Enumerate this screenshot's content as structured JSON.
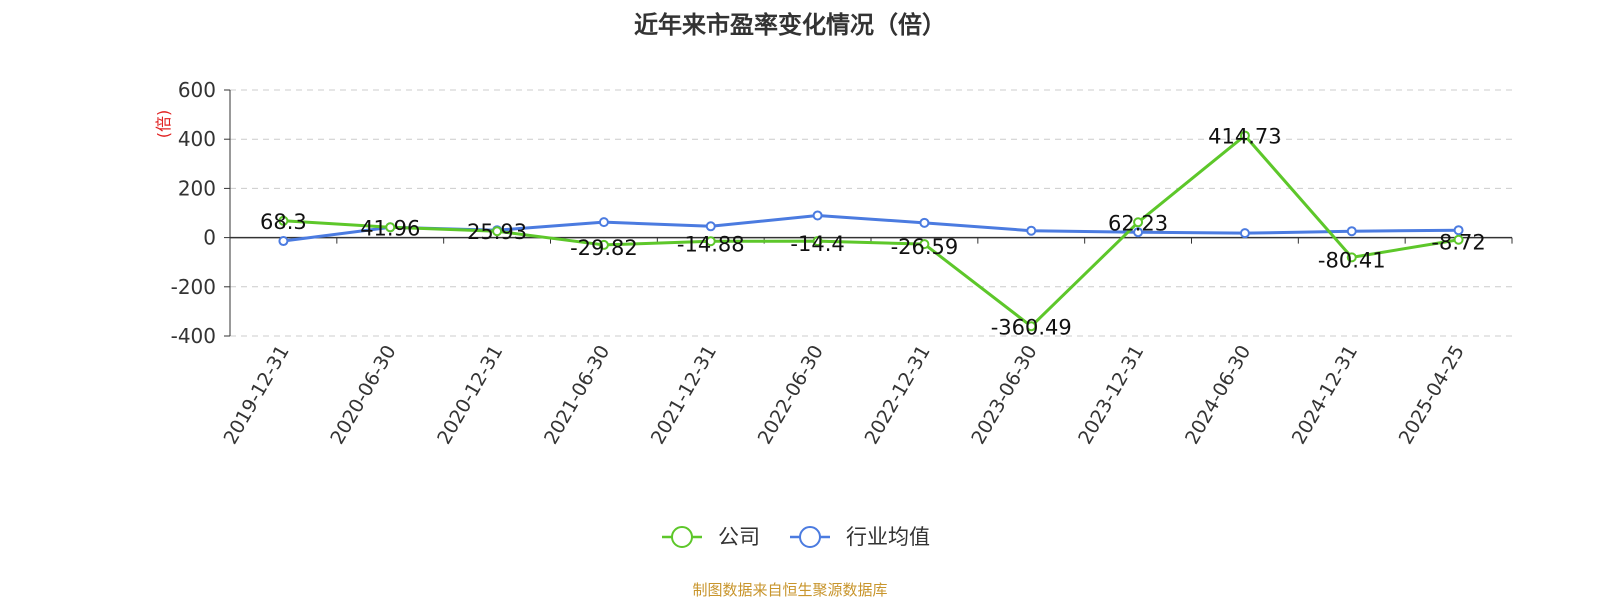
{
  "chart_data": {
    "type": "line",
    "title": "近年来市盈率变化情况（倍）",
    "ylabel": "(倍)",
    "xlabel": "",
    "categories": [
      "2019-12-31",
      "2020-06-30",
      "2020-12-31",
      "2021-06-30",
      "2021-12-31",
      "2022-06-30",
      "2022-12-31",
      "2023-06-30",
      "2023-12-31",
      "2024-06-30",
      "2024-12-31",
      "2025-04-25"
    ],
    "ylim": [
      -400,
      600
    ],
    "yticks": [
      -400,
      -200,
      0,
      200,
      400,
      600
    ],
    "ytick_labels": [
      "-400",
      "-200",
      "0",
      "200",
      "400",
      "600"
    ],
    "grid": "horizontal-dashed",
    "legend_position": "bottom-center",
    "series": [
      {
        "name": "公司",
        "color": "#5dc72a",
        "values": [
          68.3,
          41.96,
          25.93,
          -29.82,
          -14.88,
          -14.4,
          -26.59,
          -360.49,
          62.23,
          414.73,
          -80.41,
          -8.72
        ],
        "labels": [
          "68.3",
          "41.96",
          "25.93",
          "-29.82",
          "-14.88",
          "-14.4",
          "-26.59",
          "-360.49",
          "62.23",
          "414.73",
          "-80.41",
          "-8.72"
        ]
      },
      {
        "name": "行业均值",
        "color": "#4b7be0",
        "values": [
          -14,
          42,
          30,
          63,
          46,
          90,
          60,
          28,
          22,
          18,
          26,
          30
        ]
      }
    ]
  },
  "source": "制图数据来自恒生聚源数据库"
}
